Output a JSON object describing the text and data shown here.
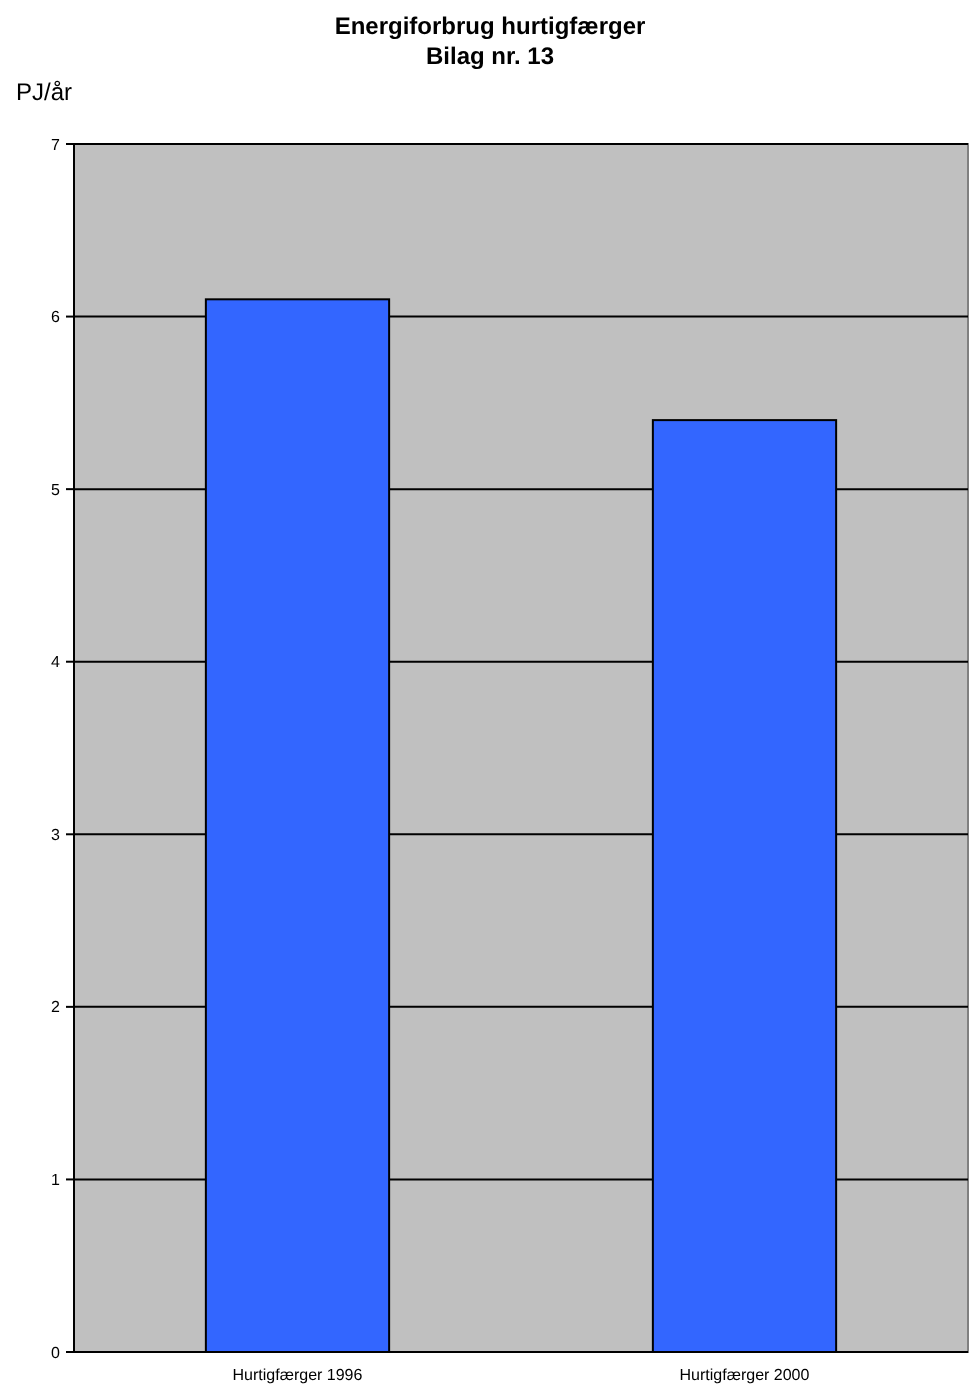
{
  "chart_data": {
    "type": "bar",
    "title": "Energiforbrug hurtigfærger",
    "subtitle": "Bilag nr. 13",
    "ylabel": "PJ/år",
    "categories": [
      "Hurtigfærger 1996",
      "Hurtigfærger 2000"
    ],
    "values": [
      6.1,
      5.4
    ],
    "color": "#3366ff",
    "ylim": [
      0,
      7
    ],
    "yticks": [
      0,
      1,
      2,
      3,
      4,
      5,
      6,
      7
    ],
    "grid": "y"
  }
}
